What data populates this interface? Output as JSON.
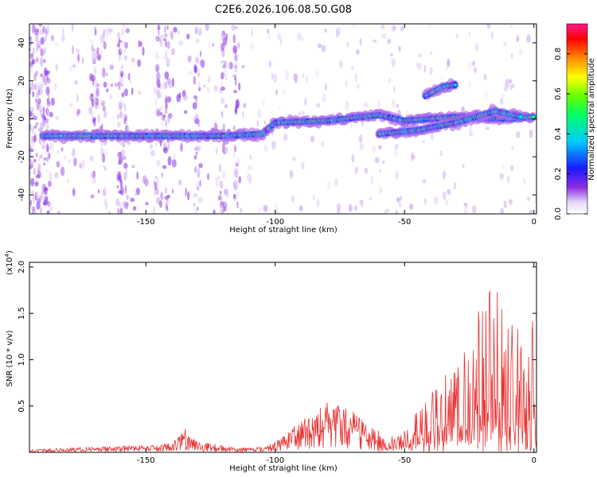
{
  "title": "C2E6.2026.106.08.50.G08",
  "chart_data": [
    {
      "type": "heatmap",
      "xlabel": "Height of straight line (km)",
      "ylabel": "Frequency (Hz)",
      "xlim": [
        -195,
        1
      ],
      "ylim": [
        -50,
        50
      ],
      "xticks": [
        -150,
        -100,
        -50,
        0
      ],
      "yticks": [
        -40,
        -20,
        0,
        20,
        40
      ],
      "colorbar": {
        "label": "Normalized spectral amplitude",
        "range": [
          0,
          0.95
        ],
        "ticks": [
          0.0,
          0.2,
          0.4,
          0.6,
          0.8
        ]
      },
      "ridges": [
        {
          "name": "main-trace",
          "points": [
            [
              -190,
              -9
            ],
            [
              -150,
              -9
            ],
            [
              -120,
              -9
            ],
            [
              -105,
              -8
            ],
            [
              -100,
              -2
            ],
            [
              -80,
              -1
            ],
            [
              -60,
              2
            ],
            [
              -50,
              -1
            ],
            [
              -30,
              1
            ],
            [
              -10,
              0
            ],
            [
              0,
              1
            ]
          ]
        },
        {
          "name": "lower-branch",
          "points": [
            [
              -60,
              -8
            ],
            [
              -45,
              -6
            ],
            [
              -30,
              -2
            ],
            [
              -15,
              4
            ],
            [
              -5,
              1
            ]
          ]
        },
        {
          "name": "upper-branch",
          "points": [
            [
              -42,
              12
            ],
            [
              -35,
              17
            ],
            [
              -30,
              18
            ]
          ]
        }
      ]
    },
    {
      "type": "line",
      "xlabel": "Height of straight line (km)",
      "ylabel": "SNR (10 * v/v)",
      "multiplier_label": "(x10",
      "multiplier_exp": "4",
      "multiplier_close": ")",
      "xlim": [
        -195,
        1
      ],
      "ylim": [
        0,
        2.05
      ],
      "xticks": [
        -150,
        -100,
        -50,
        0
      ],
      "yticks": [
        0.5,
        1.0,
        1.5,
        2.0
      ],
      "envelope": [
        [
          -195,
          0.03
        ],
        [
          -170,
          0.06
        ],
        [
          -150,
          0.08
        ],
        [
          -140,
          0.1
        ],
        [
          -136,
          0.3
        ],
        [
          -130,
          0.12
        ],
        [
          -115,
          0.05
        ],
        [
          -105,
          0.06
        ],
        [
          -98,
          0.15
        ],
        [
          -90,
          0.35
        ],
        [
          -80,
          0.55
        ],
        [
          -70,
          0.45
        ],
        [
          -62,
          0.25
        ],
        [
          -55,
          0.18
        ],
        [
          -50,
          0.3
        ],
        [
          -42,
          0.6
        ],
        [
          -35,
          0.8
        ],
        [
          -28,
          1.1
        ],
        [
          -22,
          1.5
        ],
        [
          -18,
          1.75
        ],
        [
          -15,
          2.05
        ],
        [
          -10,
          1.5
        ],
        [
          -5,
          1.35
        ],
        [
          -2,
          1.1
        ],
        [
          0,
          1.7
        ]
      ],
      "color": "#e83030"
    }
  ]
}
